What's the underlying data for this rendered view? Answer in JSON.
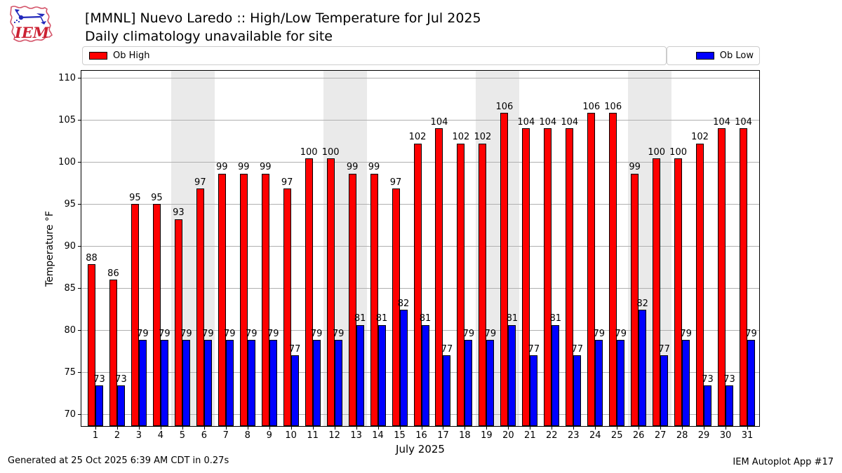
{
  "header": {
    "title": "[MMNL] Nuevo Laredo :: High/Low Temperature for Jul 2025",
    "subtitle": "Daily climatology unavailable for site",
    "logo_text": "IEM"
  },
  "legend": {
    "high": "Ob High",
    "low": "Ob Low"
  },
  "footer": {
    "generated": "Generated at 25 Oct 2025 6:39 AM CDT in 0.27s",
    "app": "IEM Autoplot App #17"
  },
  "colors": {
    "high_bar": "#ff0000",
    "low_bar": "#0000ff",
    "bar_edge": "#000000",
    "weekend_band": "#eaeaea",
    "gridline": "#b0b0b0",
    "legend_border": "#cccccc",
    "logo_red": "#cc2233",
    "logo_blue": "#2229bb"
  },
  "chart_data": {
    "type": "bar",
    "title": "[MMNL] Nuevo Laredo :: High/Low Temperature for Jul 2025",
    "subtitle": "Daily climatology unavailable for site",
    "xlabel": "July 2025",
    "ylabel": "Temperature °F",
    "x": [
      1,
      2,
      3,
      4,
      5,
      6,
      7,
      8,
      9,
      10,
      11,
      12,
      13,
      14,
      15,
      16,
      17,
      18,
      19,
      20,
      21,
      22,
      23,
      24,
      25,
      26,
      27,
      28,
      29,
      30,
      31
    ],
    "ylim": [
      68.4,
      110.9
    ],
    "yticks": [
      70,
      75,
      80,
      85,
      90,
      95,
      100,
      105,
      110
    ],
    "grid": true,
    "weekend_shaded_days": [
      [
        5,
        6
      ],
      [
        12,
        13
      ],
      [
        19,
        20
      ],
      [
        26,
        27
      ]
    ],
    "legend_position": "top-expanded",
    "series": [
      {
        "name": "Ob High",
        "color": "#ff0000",
        "labels": [
          88,
          86,
          95,
          95,
          93,
          97,
          99,
          99,
          99,
          97,
          100,
          100,
          99,
          99,
          97,
          102,
          104,
          102,
          102,
          106,
          104,
          104,
          104,
          106,
          106,
          99,
          100,
          100,
          102,
          104,
          104
        ],
        "values": [
          87.8,
          86,
          95,
          95,
          93.2,
          96.8,
          98.6,
          98.6,
          98.6,
          96.8,
          100.4,
          100.4,
          98.6,
          98.6,
          96.8,
          102.2,
          104,
          102.2,
          102.2,
          105.8,
          104,
          104,
          104,
          105.8,
          105.8,
          98.6,
          100.4,
          100.4,
          102.2,
          104,
          104
        ]
      },
      {
        "name": "Ob Low",
        "color": "#0000ff",
        "labels": [
          73,
          73,
          79,
          79,
          79,
          79,
          79,
          79,
          79,
          77,
          79,
          79,
          81,
          81,
          82,
          81,
          77,
          79,
          79,
          81,
          77,
          81,
          77,
          79,
          79,
          82,
          77,
          79,
          73,
          73,
          79
        ],
        "values": [
          73.4,
          73.4,
          78.8,
          78.8,
          78.8,
          78.8,
          78.8,
          78.8,
          78.8,
          77,
          78.8,
          78.8,
          80.6,
          80.6,
          82.4,
          80.6,
          77,
          78.8,
          78.8,
          80.6,
          77,
          80.6,
          77,
          78.8,
          78.8,
          82.4,
          77,
          78.8,
          73.4,
          73.4,
          78.8
        ]
      }
    ]
  }
}
